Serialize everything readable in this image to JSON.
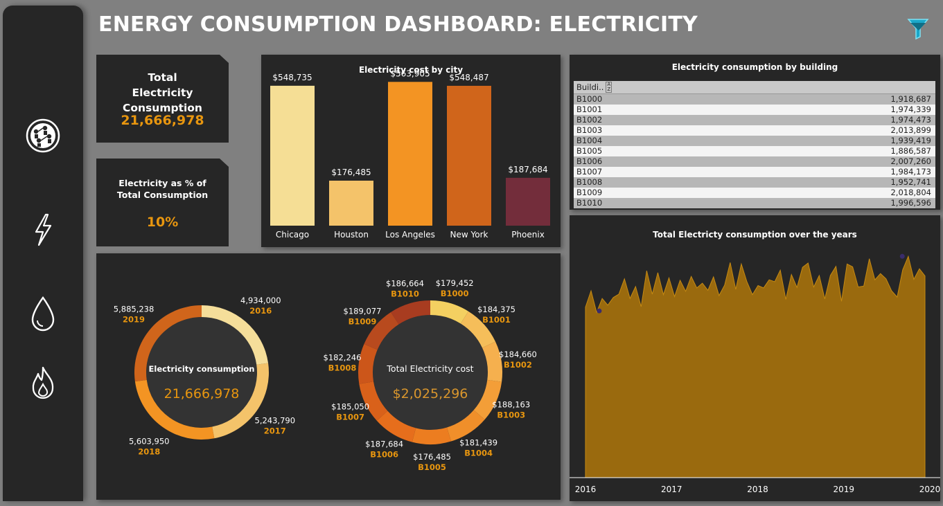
{
  "title": "ENERGY CONSUMPTION DASHBOARD: ELECTRICITY",
  "sidebar": {
    "items": [
      {
        "icon": "all-energy-icon"
      },
      {
        "icon": "electricity-bolt-icon"
      },
      {
        "icon": "water-drop-icon"
      },
      {
        "icon": "gas-flame-icon"
      }
    ]
  },
  "header": {
    "filter_icon": "filter-funnel-icon"
  },
  "kpis": {
    "total": {
      "label": "Total Electricity Consumption",
      "value": "21,666,978"
    },
    "pct": {
      "label": "Electricity as % of Total Consumption",
      "value": "10%"
    }
  },
  "colors": {
    "accent": "#e8960f",
    "panel": "#262626",
    "background": "#808080",
    "area_fill": "#9a6a0e"
  },
  "chart_data": [
    {
      "type": "bar",
      "title": "Electricity cost by city",
      "categories": [
        "Chicago",
        "Houston",
        "Los Angeles",
        "New York",
        "Phoenix"
      ],
      "values": [
        548735,
        176485,
        563905,
        548487,
        187684
      ],
      "labels": [
        "$548,735",
        "$176,485",
        "$563,905",
        "$548,487",
        "$187,684"
      ],
      "colors": [
        "#f5de95",
        "#f4c36a",
        "#f39423",
        "#d0651b",
        "#732d3b"
      ],
      "ylim": [
        0,
        600000
      ]
    },
    {
      "type": "pie",
      "title": "Electricity consumption",
      "center_value": "21,666,978",
      "categories": [
        "2016",
        "2017",
        "2018",
        "2019"
      ],
      "values": [
        4934000,
        5243790,
        5603950,
        5885238
      ],
      "labels": [
        "4,934,000",
        "5,243,790",
        "5,603,950",
        "5,885,238"
      ],
      "colors": [
        "#f5de9a",
        "#f4c36a",
        "#f39423",
        "#d0651b"
      ]
    },
    {
      "type": "pie",
      "title": "Total  Electricity cost",
      "center_value": "$2,025,296",
      "categories": [
        "B1000",
        "B1001",
        "B1002",
        "B1003",
        "B1004",
        "B1005",
        "B1006",
        "B1007",
        "B1008",
        "B1009",
        "B1010"
      ],
      "values": [
        179452,
        184375,
        184660,
        188163,
        181439,
        176485,
        187684,
        185050,
        182246,
        189077,
        186664
      ],
      "labels": [
        "$179,452",
        "$184,375",
        "$184,660",
        "$188,163",
        "$181,439",
        "$176,485",
        "$187,684",
        "$185,050",
        "$182,246",
        "$189,077",
        "$186,664"
      ],
      "colors": [
        "#f4d061",
        "#f5be5a",
        "#f5b04e",
        "#f39e38",
        "#f08f2a",
        "#ec7d20",
        "#e66e1c",
        "#d9611a",
        "#cc561a",
        "#b84a1e",
        "#a83c20"
      ]
    },
    {
      "type": "table",
      "title": "Electricity consumption by building",
      "header": "Buildi..",
      "rows": [
        {
          "building": "B1000",
          "value": "1,918,687"
        },
        {
          "building": "B1001",
          "value": "1,974,339"
        },
        {
          "building": "B1002",
          "value": "1,974,473"
        },
        {
          "building": "B1003",
          "value": "2,013,899"
        },
        {
          "building": "B1004",
          "value": "1,939,419"
        },
        {
          "building": "B1005",
          "value": "1,886,587"
        },
        {
          "building": "B1006",
          "value": "2,007,260"
        },
        {
          "building": "B1007",
          "value": "1,984,173"
        },
        {
          "building": "B1008",
          "value": "1,952,741"
        },
        {
          "building": "B1009",
          "value": "2,018,804"
        },
        {
          "building": "B1010",
          "value": "1,996,596"
        }
      ]
    },
    {
      "type": "area",
      "title": "Total Electricty consumption over the years",
      "x_ticks": [
        "2016",
        "2017",
        "2018",
        "2019",
        "2020"
      ],
      "x_range": [
        2016,
        2020
      ],
      "y_range": [
        0,
        500000
      ],
      "y": [
        356000,
        390000,
        345000,
        374000,
        360000,
        376000,
        383000,
        415000,
        374000,
        399000,
        357000,
        432000,
        383000,
        428000,
        382000,
        417000,
        378000,
        412000,
        389000,
        420000,
        396000,
        406000,
        391000,
        419000,
        380000,
        402000,
        449000,
        393000,
        446000,
        409000,
        382000,
        401000,
        396000,
        413000,
        409000,
        433000,
        372000,
        424000,
        397000,
        439000,
        448000,
        398000,
        422000,
        373000,
        422000,
        441000,
        368000,
        446000,
        440000,
        398000,
        400000,
        457000,
        413000,
        426000,
        415000,
        390000,
        377000,
        434000,
        462000,
        414000,
        436000,
        421000
      ],
      "markers": [
        {
          "x": 2016.16,
          "y": 348000
        },
        {
          "x": 2019.68,
          "y": 462000
        }
      ]
    }
  ]
}
